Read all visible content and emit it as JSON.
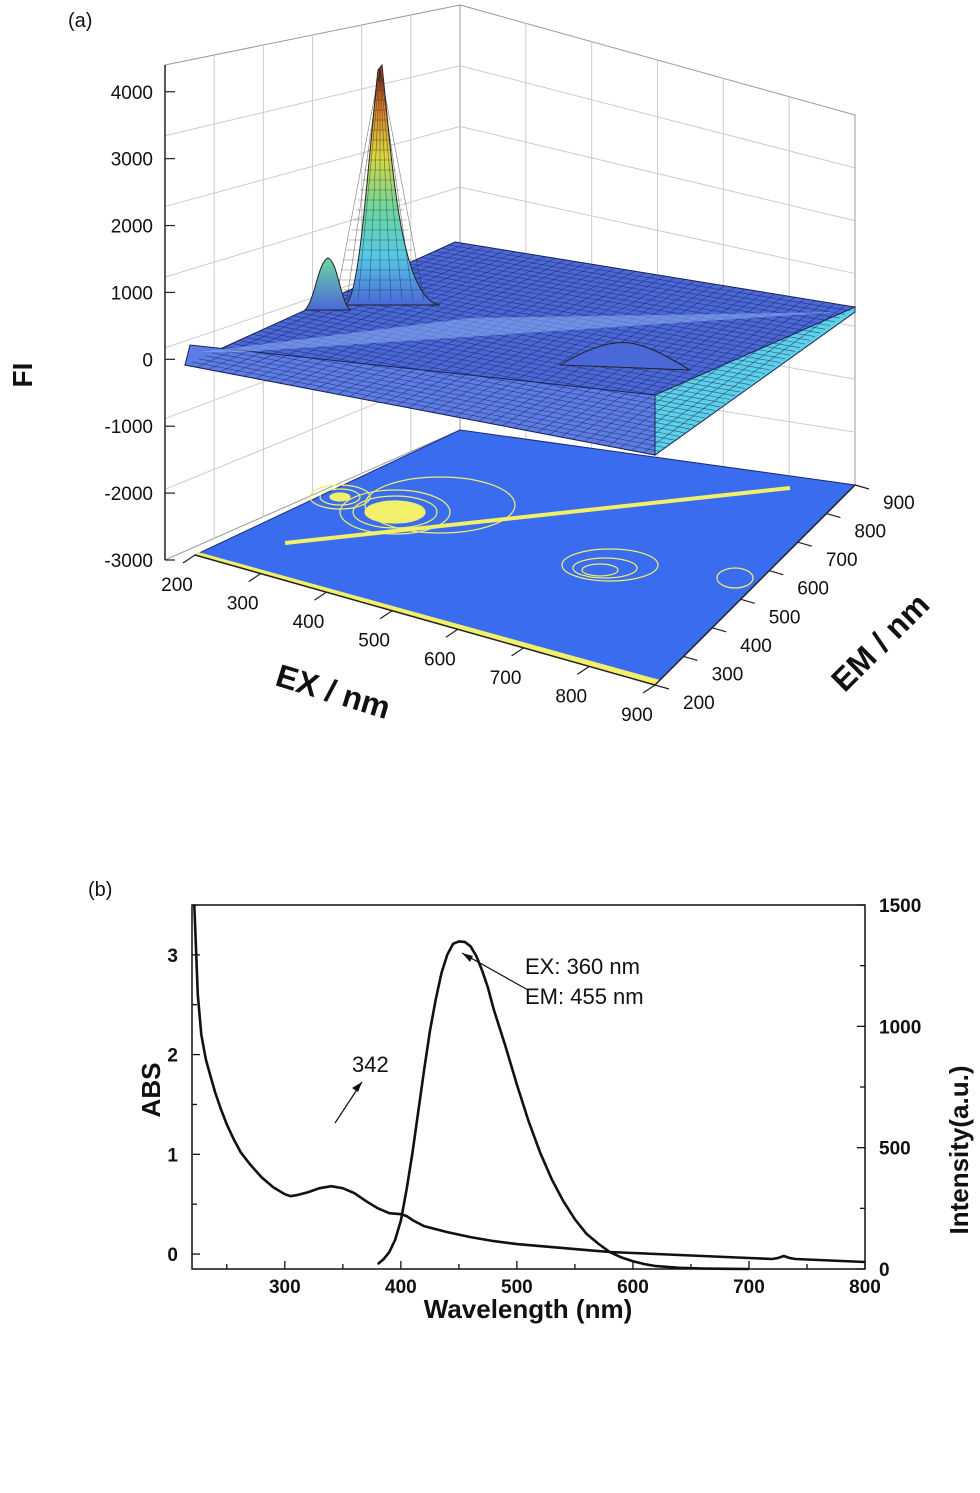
{
  "chart_data": [
    {
      "panel": "(a)",
      "type": "surface3d",
      "xlabel": "EX / nm",
      "ylabel": "EM / nm",
      "zlabel": "FI",
      "x_ticks": [
        "200",
        "300",
        "400",
        "500",
        "600",
        "700",
        "800",
        "900"
      ],
      "y_ticks": [
        "200",
        "300",
        "400",
        "500",
        "600",
        "700",
        "800",
        "900"
      ],
      "z_ticks": [
        "-3000",
        "-2000",
        "-1000",
        "0",
        "1000",
        "2000",
        "3000",
        "4000"
      ],
      "xlim": [
        200,
        900
      ],
      "ylim": [
        200,
        900
      ],
      "zlim": [
        -3000,
        4400
      ],
      "peaks": [
        {
          "ex": 360,
          "em": 455,
          "fi": 4300
        },
        {
          "ex": 270,
          "em": 440,
          "fi": 1150
        },
        {
          "ex": 640,
          "em": 560,
          "fi": 450
        }
      ],
      "colors": {
        "surface": "#3f61d6",
        "peak_top": "#c83a1c",
        "contour_plane": "#3a6cf0",
        "contour": "#f2f06a"
      }
    },
    {
      "panel": "(b)",
      "type": "line",
      "xlabel": "Wavelength (nm)",
      "ylabel": "ABS",
      "y2label": "Intensity(a.u.)",
      "xlim": [
        220,
        800
      ],
      "ylim": [
        -0.15,
        3.5
      ],
      "y2lim": [
        0,
        1500
      ],
      "x_ticks": [
        "300",
        "400",
        "500",
        "600",
        "700",
        "800"
      ],
      "y_ticks": [
        "0",
        "1",
        "2",
        "3"
      ],
      "y2_ticks": [
        "0",
        "500",
        "1000",
        "1500"
      ],
      "annotations": [
        "342",
        "EX: 360 nm",
        "EM: 455 nm"
      ],
      "series": [
        {
          "axis": "left",
          "x": [
            222,
            225,
            228,
            232,
            236,
            240,
            245,
            250,
            256,
            262,
            270,
            280,
            290,
            300,
            305,
            310,
            320,
            330,
            340,
            350,
            360,
            370,
            380,
            390,
            400,
            405,
            410,
            420,
            440,
            460,
            480,
            500,
            520,
            540,
            560,
            580,
            600,
            620,
            640,
            660,
            680,
            700,
            720,
            725,
            730,
            735,
            740,
            760,
            780,
            800
          ],
          "values": [
            3.5,
            2.6,
            2.2,
            1.95,
            1.78,
            1.62,
            1.45,
            1.3,
            1.15,
            1.02,
            0.9,
            0.77,
            0.67,
            0.6,
            0.58,
            0.59,
            0.62,
            0.66,
            0.68,
            0.66,
            0.61,
            0.53,
            0.46,
            0.41,
            0.4,
            0.38,
            0.34,
            0.28,
            0.22,
            0.17,
            0.13,
            0.1,
            0.08,
            0.06,
            0.04,
            0.02,
            0.01,
            0.0,
            -0.01,
            -0.02,
            -0.03,
            -0.04,
            -0.05,
            -0.04,
            -0.02,
            -0.04,
            -0.05,
            -0.06,
            -0.07,
            -0.08
          ]
        },
        {
          "axis": "right",
          "x": [
            380,
            385,
            390,
            395,
            400,
            405,
            410,
            415,
            420,
            425,
            430,
            435,
            440,
            445,
            450,
            455,
            460,
            465,
            470,
            475,
            480,
            490,
            500,
            510,
            520,
            530,
            540,
            550,
            560,
            570,
            580,
            590,
            600,
            610,
            620,
            640,
            660,
            680,
            700
          ],
          "values": [
            20,
            40,
            70,
            120,
            200,
            330,
            480,
            650,
            820,
            980,
            1110,
            1220,
            1295,
            1340,
            1350,
            1348,
            1330,
            1290,
            1230,
            1160,
            1070,
            920,
            760,
            610,
            480,
            370,
            280,
            205,
            145,
            105,
            70,
            48,
            32,
            20,
            12,
            5,
            2,
            1,
            0
          ]
        }
      ]
    }
  ]
}
